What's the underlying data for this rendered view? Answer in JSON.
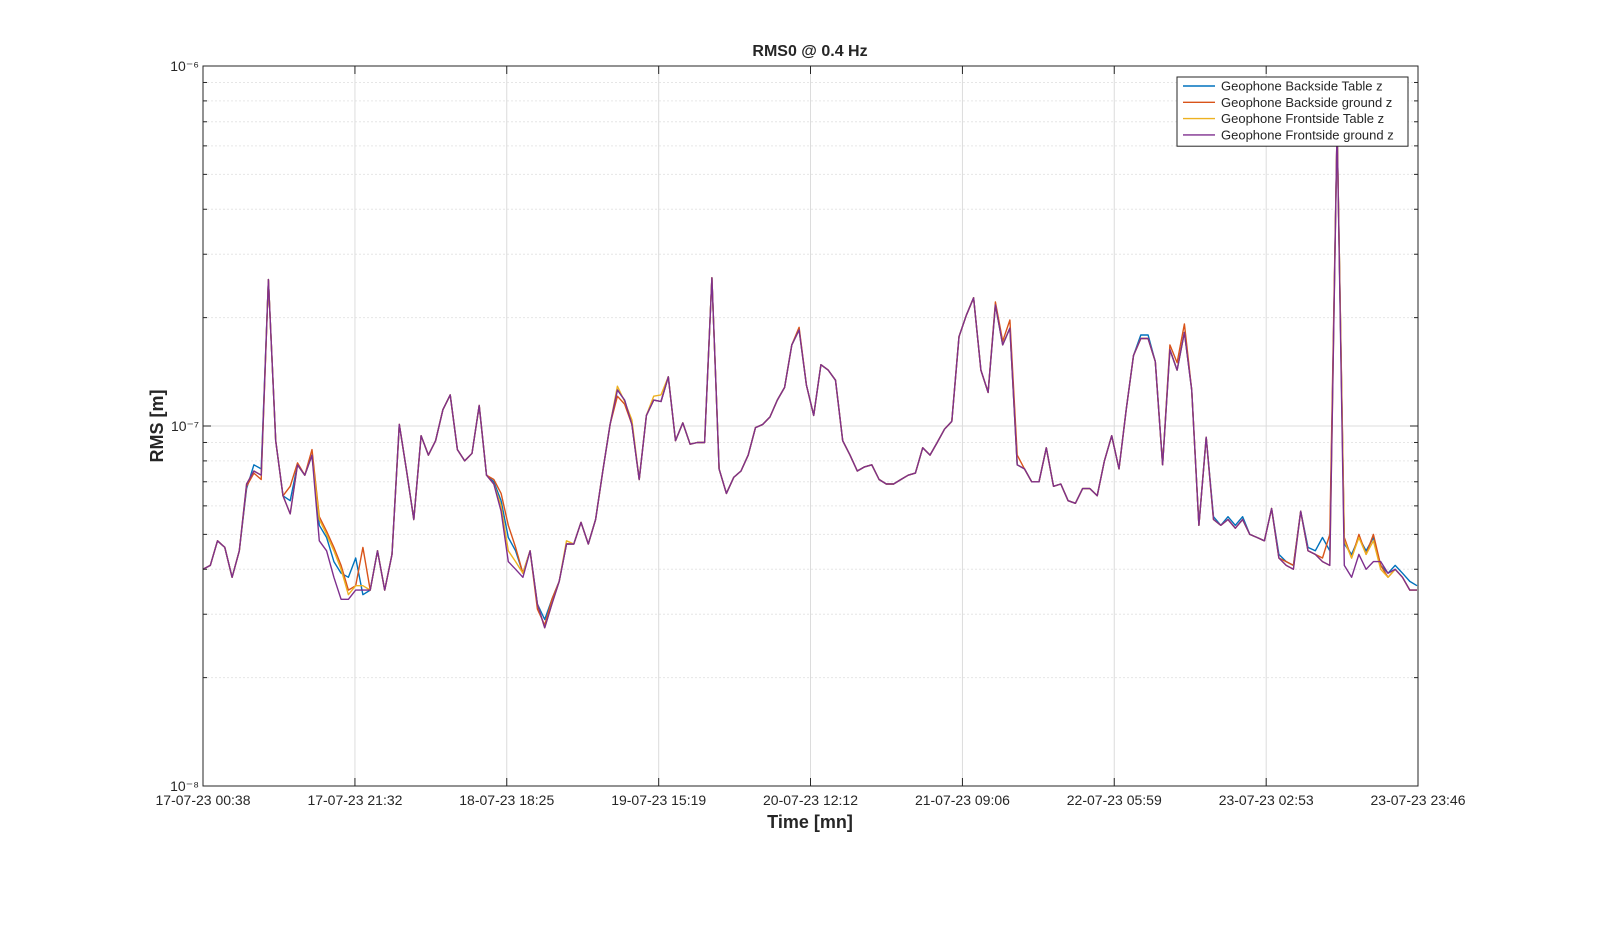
{
  "chart_data": {
    "type": "line",
    "title": "RMS0 @ 0.4 Hz",
    "xlabel": "Time [mn]",
    "ylabel": "RMS [m]",
    "yscale": "log",
    "grid": true,
    "minor_grid": true,
    "legend": "upper right",
    "xlim": [
      "17-07-23 00:38",
      "23-07-23 23:46"
    ],
    "xticks": [
      "17-07-23 00:38",
      "17-07-23 21:32",
      "18-07-23 18:25",
      "19-07-23 15:19",
      "20-07-23 12:12",
      "21-07-23 09:06",
      "22-07-23 05:59",
      "23-07-23 02:53",
      "23-07-23 23:46"
    ],
    "ylim": [
      1e-08,
      1e-06
    ],
    "yticks": [
      {
        "value": 1e-08,
        "label": "10⁻⁸"
      },
      {
        "value": 1e-07,
        "label": "10⁻⁷"
      },
      {
        "value": 1e-06,
        "label": "10⁻⁶"
      }
    ],
    "x": [
      "17-07-23 00:38",
      "17-07-23 01:38",
      "17-07-23 02:38",
      "17-07-23 03:38",
      "17-07-23 04:38",
      "17-07-23 05:38",
      "17-07-23 06:38",
      "17-07-23 07:38",
      "17-07-23 08:38",
      "17-07-23 09:38",
      "17-07-23 10:38",
      "17-07-23 11:38",
      "17-07-23 12:38",
      "17-07-23 13:38",
      "17-07-23 14:38",
      "17-07-23 15:38",
      "17-07-23 16:38",
      "17-07-23 17:38",
      "17-07-23 18:38",
      "17-07-23 19:38",
      "17-07-23 20:38",
      "17-07-23 21:38",
      "17-07-23 22:38",
      "17-07-23 23:38",
      "18-07-23 00:38",
      "18-07-23 01:38",
      "18-07-23 02:38",
      "18-07-23 03:38",
      "18-07-23 04:38",
      "18-07-23 05:38",
      "18-07-23 06:38",
      "18-07-23 07:38",
      "18-07-23 08:38",
      "18-07-23 09:38",
      "18-07-23 10:38",
      "18-07-23 11:38",
      "18-07-23 12:38",
      "18-07-23 13:38",
      "18-07-23 14:38",
      "18-07-23 15:38",
      "18-07-23 16:38",
      "18-07-23 17:38",
      "18-07-23 18:38",
      "18-07-23 19:38",
      "18-07-23 20:38",
      "18-07-23 21:38",
      "18-07-23 22:38",
      "18-07-23 23:38",
      "19-07-23 00:38",
      "19-07-23 01:38",
      "19-07-23 02:38",
      "19-07-23 03:38",
      "19-07-23 04:38",
      "19-07-23 05:38",
      "19-07-23 06:38",
      "19-07-23 07:38",
      "19-07-23 08:38",
      "19-07-23 09:38",
      "19-07-23 10:38",
      "19-07-23 11:38",
      "19-07-23 12:38",
      "19-07-23 13:38",
      "19-07-23 14:38",
      "19-07-23 15:38",
      "19-07-23 16:38",
      "19-07-23 17:38",
      "19-07-23 18:38",
      "19-07-23 19:38",
      "19-07-23 20:38",
      "19-07-23 21:38",
      "19-07-23 22:38",
      "19-07-23 23:38",
      "20-07-23 00:38",
      "20-07-23 01:38",
      "20-07-23 02:38",
      "20-07-23 03:38",
      "20-07-23 04:38",
      "20-07-23 05:38",
      "20-07-23 06:38",
      "20-07-23 07:38",
      "20-07-23 08:38",
      "20-07-23 09:38",
      "20-07-23 10:38",
      "20-07-23 11:38",
      "20-07-23 12:38",
      "20-07-23 13:38",
      "20-07-23 14:38",
      "20-07-23 15:38",
      "20-07-23 16:38",
      "20-07-23 17:38",
      "20-07-23 18:38",
      "20-07-23 19:38",
      "20-07-23 20:38",
      "20-07-23 21:38",
      "20-07-23 22:38",
      "20-07-23 23:38",
      "21-07-23 00:38",
      "21-07-23 01:38",
      "21-07-23 02:38",
      "21-07-23 03:38",
      "21-07-23 04:38",
      "21-07-23 05:38",
      "21-07-23 06:38",
      "21-07-23 07:38",
      "21-07-23 08:38",
      "21-07-23 09:38",
      "21-07-23 10:38",
      "21-07-23 11:38",
      "21-07-23 12:38",
      "21-07-23 13:38",
      "21-07-23 14:38",
      "21-07-23 15:38",
      "21-07-23 16:38",
      "21-07-23 17:38",
      "21-07-23 18:38",
      "21-07-23 19:38",
      "21-07-23 20:38",
      "21-07-23 21:38",
      "21-07-23 22:38",
      "21-07-23 23:38",
      "22-07-23 00:38",
      "22-07-23 01:38",
      "22-07-23 02:38",
      "22-07-23 03:38",
      "22-07-23 04:38",
      "22-07-23 05:38",
      "22-07-23 06:38",
      "22-07-23 07:38",
      "22-07-23 08:38",
      "22-07-23 09:38",
      "22-07-23 10:38",
      "22-07-23 11:38",
      "22-07-23 12:38",
      "22-07-23 13:38",
      "22-07-23 14:38",
      "22-07-23 15:38",
      "22-07-23 16:38",
      "22-07-23 17:38",
      "22-07-23 18:38",
      "22-07-23 19:38",
      "22-07-23 20:38",
      "22-07-23 21:38",
      "22-07-23 22:38",
      "22-07-23 23:38",
      "23-07-23 00:38",
      "23-07-23 01:38",
      "23-07-23 02:38",
      "23-07-23 03:38",
      "23-07-23 04:38",
      "23-07-23 05:38",
      "23-07-23 06:38",
      "23-07-23 07:38",
      "23-07-23 08:38",
      "23-07-23 09:38",
      "23-07-23 10:38",
      "23-07-23 11:38",
      "23-07-23 12:38",
      "23-07-23 13:38",
      "23-07-23 14:38",
      "23-07-23 15:38",
      "23-07-23 16:38",
      "23-07-23 17:38",
      "23-07-23 18:38",
      "23-07-23 19:38",
      "23-07-23 20:38",
      "23-07-23 21:38",
      "23-07-23 22:38",
      "23-07-23 23:38"
    ],
    "series": [
      {
        "name": "Geophone Backside Table z",
        "color": "#0072bd",
        "values": [
          4e-08,
          4.1e-08,
          4.8e-08,
          4.6e-08,
          3.8e-08,
          4.5e-08,
          6.7e-08,
          7.8e-08,
          7.6e-08,
          2.55e-07,
          9.1e-08,
          6.4e-08,
          6.2e-08,
          7.8e-08,
          7.3e-08,
          8.3e-08,
          5.3e-08,
          4.9e-08,
          4.2e-08,
          3.9e-08,
          3.8e-08,
          4.3e-08,
          3.4e-08,
          3.5e-08,
          4.5e-08,
          3.5e-08,
          4.4e-08,
          1.01e-07,
          7.5e-08,
          5.5e-08,
          9.4e-08,
          8.3e-08,
          9.1e-08,
          1.11e-07,
          1.22e-07,
          8.6e-08,
          8e-08,
          8.4e-08,
          1.14e-07,
          7.3e-08,
          7e-08,
          6.2e-08,
          4.9e-08,
          4.5e-08,
          3.9e-08,
          4.5e-08,
          3.2e-08,
          2.9e-08,
          3.3e-08,
          3.7e-08,
          4.7e-08,
          4.7e-08,
          5.4e-08,
          4.7e-08,
          5.5e-08,
          7.5e-08,
          1.01e-07,
          1.26e-07,
          1.18e-07,
          1.01e-07,
          7.1e-08,
          1.07e-07,
          1.18e-07,
          1.17e-07,
          1.37e-07,
          9.1e-08,
          1.02e-07,
          8.9e-08,
          9e-08,
          9e-08,
          2.58e-07,
          7.6e-08,
          6.5e-08,
          7.2e-08,
          7.5e-08,
          8.3e-08,
          9.9e-08,
          1.01e-07,
          1.06e-07,
          1.18e-07,
          1.28e-07,
          1.68e-07,
          1.85e-07,
          1.3e-07,
          1.07e-07,
          1.48e-07,
          1.43e-07,
          1.34e-07,
          9.1e-08,
          8.3e-08,
          7.5e-08,
          7.7e-08,
          7.8e-08,
          7.1e-08,
          6.9e-08,
          6.9e-08,
          7.1e-08,
          7.3e-08,
          7.4e-08,
          8.7e-08,
          8.3e-08,
          9e-08,
          9.8e-08,
          1.03e-07,
          1.77e-07,
          2.03e-07,
          2.27e-07,
          1.43e-07,
          1.24e-07,
          2.17e-07,
          1.68e-07,
          1.87e-07,
          7.8e-08,
          7.6e-08,
          7e-08,
          7e-08,
          8.7e-08,
          6.8e-08,
          6.9e-08,
          6.2e-08,
          6.1e-08,
          6.7e-08,
          6.7e-08,
          6.4e-08,
          8e-08,
          9.4e-08,
          7.6e-08,
          1.11e-07,
          1.57e-07,
          1.79e-07,
          1.79e-07,
          1.51e-07,
          7.8e-08,
          1.63e-07,
          1.43e-07,
          1.82e-07,
          1.26e-07,
          5.3e-08,
          9.3e-08,
          5.6e-08,
          5.3e-08,
          5.6e-08,
          5.3e-08,
          5.6e-08,
          5e-08,
          4.9e-08,
          4.8e-08,
          5.9e-08,
          4.4e-08,
          4.2e-08,
          4.1e-08,
          5.8e-08,
          4.6e-08,
          4.5e-08,
          4.9e-08,
          4.5e-08,
          6.8e-07,
          4.7e-08,
          4.4e-08,
          4.9e-08,
          4.5e-08,
          4.9e-08,
          4.1e-08,
          3.9e-08,
          4.1e-08,
          3.9e-08,
          3.7e-08,
          3.6e-08
        ]
      },
      {
        "name": "Geophone Backside ground z",
        "color": "#d95319",
        "values": [
          4e-08,
          4.1e-08,
          4.8e-08,
          4.6e-08,
          3.8e-08,
          4.5e-08,
          6.8e-08,
          7.4e-08,
          7.1e-08,
          2.55e-07,
          9.1e-08,
          6.4e-08,
          6.8e-08,
          7.9e-08,
          7.3e-08,
          8.6e-08,
          5.6e-08,
          5.1e-08,
          4.6e-08,
          4.1e-08,
          3.5e-08,
          3.6e-08,
          4.6e-08,
          3.5e-08,
          4.5e-08,
          3.5e-08,
          4.4e-08,
          1.01e-07,
          7.5e-08,
          5.5e-08,
          9.4e-08,
          8.3e-08,
          9.1e-08,
          1.11e-07,
          1.22e-07,
          8.6e-08,
          8e-08,
          8.4e-08,
          1.14e-07,
          7.3e-08,
          7.1e-08,
          6.5e-08,
          5.3e-08,
          4.6e-08,
          3.9e-08,
          4.5e-08,
          3.1e-08,
          2.8e-08,
          3.3e-08,
          3.7e-08,
          4.7e-08,
          4.7e-08,
          5.4e-08,
          4.7e-08,
          5.5e-08,
          7.5e-08,
          1.01e-07,
          1.21e-07,
          1.15e-07,
          1.01e-07,
          7.1e-08,
          1.07e-07,
          1.18e-07,
          1.17e-07,
          1.37e-07,
          9.1e-08,
          1.02e-07,
          8.9e-08,
          9e-08,
          9e-08,
          2.58e-07,
          7.6e-08,
          6.5e-08,
          7.2e-08,
          7.5e-08,
          8.3e-08,
          9.9e-08,
          1.01e-07,
          1.06e-07,
          1.18e-07,
          1.28e-07,
          1.68e-07,
          1.88e-07,
          1.3e-07,
          1.07e-07,
          1.48e-07,
          1.43e-07,
          1.34e-07,
          9.1e-08,
          8.3e-08,
          7.5e-08,
          7.7e-08,
          7.8e-08,
          7.1e-08,
          6.9e-08,
          6.9e-08,
          7.1e-08,
          7.3e-08,
          7.4e-08,
          8.7e-08,
          8.3e-08,
          9e-08,
          9.8e-08,
          1.03e-07,
          1.77e-07,
          2.03e-07,
          2.27e-07,
          1.43e-07,
          1.24e-07,
          2.21e-07,
          1.72e-07,
          1.97e-07,
          8.3e-08,
          7.6e-08,
          7e-08,
          7e-08,
          8.7e-08,
          6.8e-08,
          6.9e-08,
          6.2e-08,
          6.1e-08,
          6.7e-08,
          6.7e-08,
          6.4e-08,
          8e-08,
          9.4e-08,
          7.6e-08,
          1.11e-07,
          1.57e-07,
          1.75e-07,
          1.75e-07,
          1.51e-07,
          7.8e-08,
          1.68e-07,
          1.5e-07,
          1.92e-07,
          1.26e-07,
          5.3e-08,
          9.3e-08,
          5.5e-08,
          5.3e-08,
          5.5e-08,
          5.2e-08,
          5.5e-08,
          5e-08,
          4.9e-08,
          4.8e-08,
          5.9e-08,
          4.3e-08,
          4.2e-08,
          4.1e-08,
          5.8e-08,
          4.5e-08,
          4.4e-08,
          4.3e-08,
          5e-08,
          6.8e-07,
          4.9e-08,
          4.3e-08,
          5e-08,
          4.4e-08,
          5e-08,
          4.1e-08,
          3.8e-08,
          4e-08,
          3.8e-08,
          3.5e-08,
          3.5e-08
        ]
      },
      {
        "name": "Geophone Frontside Table z",
        "color": "#edb120",
        "values": [
          4e-08,
          4.1e-08,
          4.8e-08,
          4.6e-08,
          3.8e-08,
          4.5e-08,
          6.9e-08,
          7.5e-08,
          7.3e-08,
          2.55e-07,
          9.1e-08,
          6.4e-08,
          5.7e-08,
          7.8e-08,
          7.3e-08,
          8.3e-08,
          5.5e-08,
          5e-08,
          4.5e-08,
          4e-08,
          3.4e-08,
          3.6e-08,
          3.6e-08,
          3.5e-08,
          4.5e-08,
          3.5e-08,
          4.4e-08,
          1.01e-07,
          7.5e-08,
          5.5e-08,
          9.4e-08,
          8.3e-08,
          9.1e-08,
          1.11e-07,
          1.22e-07,
          8.6e-08,
          8e-08,
          8.4e-08,
          1.14e-07,
          7.3e-08,
          6.9e-08,
          6e-08,
          4.5e-08,
          4.2e-08,
          3.9e-08,
          4.5e-08,
          3.2e-08,
          2.75e-08,
          3.2e-08,
          3.7e-08,
          4.8e-08,
          4.7e-08,
          5.4e-08,
          4.7e-08,
          5.5e-08,
          7.5e-08,
          1.01e-07,
          1.29e-07,
          1.17e-07,
          1.04e-07,
          7.1e-08,
          1.07e-07,
          1.21e-07,
          1.22e-07,
          1.37e-07,
          9.1e-08,
          1.02e-07,
          8.9e-08,
          9e-08,
          9e-08,
          2.58e-07,
          7.6e-08,
          6.5e-08,
          7.2e-08,
          7.5e-08,
          8.3e-08,
          9.9e-08,
          1.01e-07,
          1.06e-07,
          1.18e-07,
          1.28e-07,
          1.68e-07,
          1.85e-07,
          1.3e-07,
          1.07e-07,
          1.48e-07,
          1.43e-07,
          1.34e-07,
          9.1e-08,
          8.3e-08,
          7.5e-08,
          7.7e-08,
          7.8e-08,
          7.1e-08,
          6.9e-08,
          6.9e-08,
          7.1e-08,
          7.3e-08,
          7.4e-08,
          8.7e-08,
          8.3e-08,
          9e-08,
          9.8e-08,
          1.03e-07,
          1.77e-07,
          2.03e-07,
          2.27e-07,
          1.43e-07,
          1.24e-07,
          2.17e-07,
          1.68e-07,
          1.87e-07,
          7.8e-08,
          7.6e-08,
          7e-08,
          7e-08,
          8.7e-08,
          6.8e-08,
          6.9e-08,
          6.2e-08,
          6.1e-08,
          6.7e-08,
          6.7e-08,
          6.4e-08,
          8e-08,
          9.4e-08,
          7.6e-08,
          1.11e-07,
          1.57e-07,
          1.75e-07,
          1.75e-07,
          1.51e-07,
          7.8e-08,
          1.63e-07,
          1.43e-07,
          1.82e-07,
          1.26e-07,
          5.3e-08,
          9.3e-08,
          5.5e-08,
          5.3e-08,
          5.5e-08,
          5.2e-08,
          5.5e-08,
          5e-08,
          4.9e-08,
          4.8e-08,
          5.9e-08,
          4.3e-08,
          4.1e-08,
          4e-08,
          5.8e-08,
          4.5e-08,
          4.4e-08,
          4.2e-08,
          4.1e-08,
          6.8e-07,
          4.8e-08,
          4.3e-08,
          4.9e-08,
          4.4e-08,
          4.8e-08,
          4e-08,
          3.8e-08,
          4e-08,
          3.8e-08,
          3.5e-08,
          3.5e-08
        ]
      },
      {
        "name": "Geophone Frontside ground z",
        "color": "#7e2f8e",
        "values": [
          4e-08,
          4.1e-08,
          4.8e-08,
          4.6e-08,
          3.8e-08,
          4.5e-08,
          6.9e-08,
          7.5e-08,
          7.3e-08,
          2.55e-07,
          9.1e-08,
          6.4e-08,
          5.7e-08,
          7.8e-08,
          7.3e-08,
          8.3e-08,
          4.8e-08,
          4.5e-08,
          3.8e-08,
          3.3e-08,
          3.3e-08,
          3.5e-08,
          3.5e-08,
          3.5e-08,
          4.5e-08,
          3.5e-08,
          4.4e-08,
          1.01e-07,
          7.5e-08,
          5.5e-08,
          9.4e-08,
          8.3e-08,
          9.1e-08,
          1.11e-07,
          1.22e-07,
          8.6e-08,
          8e-08,
          8.4e-08,
          1.14e-07,
          7.3e-08,
          6.9e-08,
          5.8e-08,
          4.2e-08,
          4e-08,
          3.8e-08,
          4.5e-08,
          3.2e-08,
          2.75e-08,
          3.2e-08,
          3.7e-08,
          4.7e-08,
          4.7e-08,
          5.4e-08,
          4.7e-08,
          5.5e-08,
          7.5e-08,
          1.01e-07,
          1.26e-07,
          1.18e-07,
          1.01e-07,
          7.1e-08,
          1.07e-07,
          1.18e-07,
          1.17e-07,
          1.37e-07,
          9.1e-08,
          1.02e-07,
          8.9e-08,
          9e-08,
          9e-08,
          2.58e-07,
          7.6e-08,
          6.5e-08,
          7.2e-08,
          7.5e-08,
          8.3e-08,
          9.9e-08,
          1.01e-07,
          1.06e-07,
          1.18e-07,
          1.28e-07,
          1.68e-07,
          1.85e-07,
          1.3e-07,
          1.07e-07,
          1.48e-07,
          1.43e-07,
          1.34e-07,
          9.1e-08,
          8.3e-08,
          7.5e-08,
          7.7e-08,
          7.8e-08,
          7.1e-08,
          6.9e-08,
          6.9e-08,
          7.1e-08,
          7.3e-08,
          7.4e-08,
          8.7e-08,
          8.3e-08,
          9e-08,
          9.8e-08,
          1.03e-07,
          1.77e-07,
          2.03e-07,
          2.27e-07,
          1.43e-07,
          1.24e-07,
          2.17e-07,
          1.68e-07,
          1.87e-07,
          7.8e-08,
          7.6e-08,
          7e-08,
          7e-08,
          8.7e-08,
          6.8e-08,
          6.9e-08,
          6.2e-08,
          6.1e-08,
          6.7e-08,
          6.7e-08,
          6.4e-08,
          8e-08,
          9.4e-08,
          7.6e-08,
          1.11e-07,
          1.57e-07,
          1.75e-07,
          1.75e-07,
          1.51e-07,
          7.8e-08,
          1.63e-07,
          1.43e-07,
          1.82e-07,
          1.26e-07,
          5.3e-08,
          9.3e-08,
          5.5e-08,
          5.3e-08,
          5.5e-08,
          5.2e-08,
          5.5e-08,
          5e-08,
          4.9e-08,
          4.8e-08,
          5.9e-08,
          4.3e-08,
          4.1e-08,
          4e-08,
          5.8e-08,
          4.5e-08,
          4.4e-08,
          4.2e-08,
          4.1e-08,
          6.8e-07,
          4.1e-08,
          3.8e-08,
          4.4e-08,
          4e-08,
          4.2e-08,
          4.2e-08,
          3.9e-08,
          4e-08,
          3.8e-08,
          3.5e-08,
          3.5e-08
        ]
      }
    ]
  }
}
